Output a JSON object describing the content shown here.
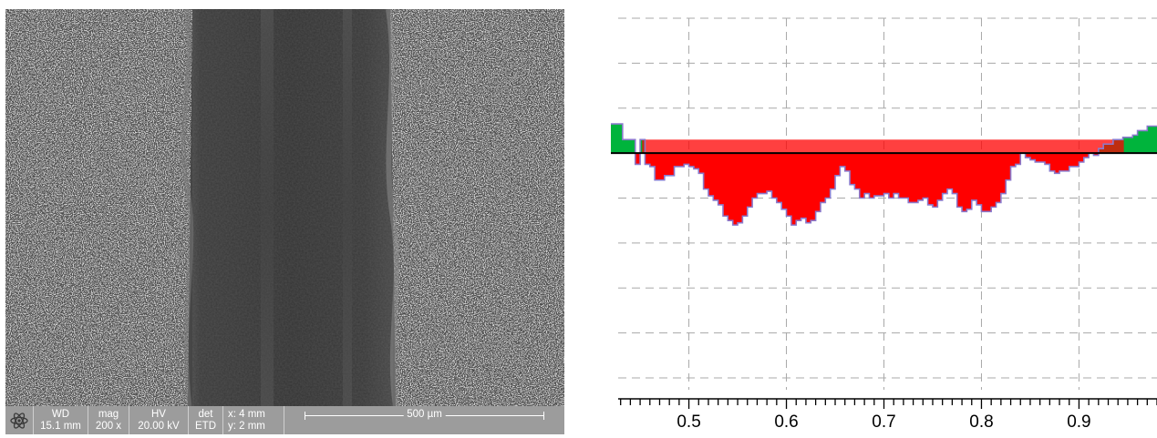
{
  "sem_databar": {
    "wd_label": "WD",
    "wd_value": "15.1 mm",
    "mag_label": "mag",
    "mag_value": "200 x",
    "hv_label": "HV",
    "hv_value": "20.00 kV",
    "det_label": "det",
    "det_value": "ETD",
    "x_value": "x: 4 mm",
    "y_value": "y: 2 mm",
    "scale_bar_label": "500 µm",
    "logo_icon": "atom-icon"
  },
  "chart_data": {
    "type": "area",
    "xlim": [
      0.42,
      0.98
    ],
    "x_ticks": [
      "0.5",
      "0.6",
      "0.7",
      "0.8",
      "0.9"
    ],
    "x_tick_values": [
      0.5,
      0.6,
      0.7,
      0.8,
      0.9
    ],
    "ylim": [
      -5,
      3
    ],
    "baseline": 0,
    "grid": true,
    "colors": {
      "below": "#ff0000",
      "above": "#00b43c",
      "outline": "#8a7acc",
      "baseline": "#000000"
    },
    "x": [
      0.42,
      0.426,
      0.432,
      0.44,
      0.445,
      0.45,
      0.455,
      0.46,
      0.465,
      0.47,
      0.475,
      0.48,
      0.485,
      0.49,
      0.495,
      0.5,
      0.505,
      0.51,
      0.515,
      0.52,
      0.525,
      0.53,
      0.535,
      0.54,
      0.545,
      0.55,
      0.555,
      0.56,
      0.565,
      0.57,
      0.575,
      0.58,
      0.585,
      0.59,
      0.595,
      0.6,
      0.605,
      0.61,
      0.615,
      0.62,
      0.625,
      0.63,
      0.635,
      0.64,
      0.645,
      0.65,
      0.655,
      0.66,
      0.665,
      0.67,
      0.675,
      0.68,
      0.685,
      0.69,
      0.695,
      0.7,
      0.705,
      0.71,
      0.715,
      0.72,
      0.725,
      0.73,
      0.735,
      0.74,
      0.745,
      0.75,
      0.755,
      0.76,
      0.765,
      0.77,
      0.775,
      0.78,
      0.785,
      0.79,
      0.795,
      0.8,
      0.805,
      0.81,
      0.815,
      0.82,
      0.825,
      0.83,
      0.835,
      0.84,
      0.845,
      0.85,
      0.855,
      0.86,
      0.865,
      0.87,
      0.875,
      0.88,
      0.885,
      0.89,
      0.895,
      0.9,
      0.905,
      0.91,
      0.915,
      0.92,
      0.925,
      0.93,
      0.935,
      0.94,
      0.945,
      0.95,
      0.955,
      0.96,
      0.965,
      0.97,
      0.975,
      0.98
    ],
    "y": [
      0.65,
      0.65,
      0.3,
      0.3,
      -0.25,
      0.3,
      -0.25,
      -0.3,
      -0.6,
      -0.6,
      -0.5,
      -0.5,
      -0.3,
      -0.3,
      -0.25,
      -0.3,
      -0.35,
      -0.45,
      -0.8,
      -0.95,
      -1.05,
      -1.15,
      -1.4,
      -1.5,
      -1.6,
      -1.55,
      -1.4,
      -1.2,
      -1.0,
      -0.9,
      -0.9,
      -0.85,
      -1.0,
      -1.1,
      -1.25,
      -1.4,
      -1.6,
      -1.5,
      -1.45,
      -1.55,
      -1.5,
      -1.3,
      -1.1,
      -1.0,
      -0.8,
      -0.5,
      -0.3,
      -0.4,
      -0.7,
      -0.8,
      -1.0,
      -0.9,
      -1.0,
      -0.95,
      -0.95,
      -0.9,
      -1.0,
      -0.9,
      -1.0,
      -1.0,
      -1.1,
      -1.1,
      -1.05,
      -1.0,
      -1.15,
      -1.2,
      -1.05,
      -0.9,
      -0.8,
      -0.9,
      -1.2,
      -1.3,
      -1.25,
      -1.05,
      -1.15,
      -1.3,
      -1.3,
      -1.2,
      -1.1,
      -0.9,
      -0.6,
      -0.3,
      -0.25,
      0.0,
      -0.1,
      -0.15,
      -0.2,
      -0.2,
      -0.25,
      -0.4,
      -0.45,
      -0.4,
      -0.4,
      -0.3,
      -0.3,
      -0.2,
      -0.1,
      0.0,
      -0.05,
      0.1,
      0.2,
      0.2,
      0.3,
      0.3,
      0.35,
      0.35,
      0.4,
      0.5,
      0.5,
      0.6,
      0.6,
      0.6
    ]
  }
}
